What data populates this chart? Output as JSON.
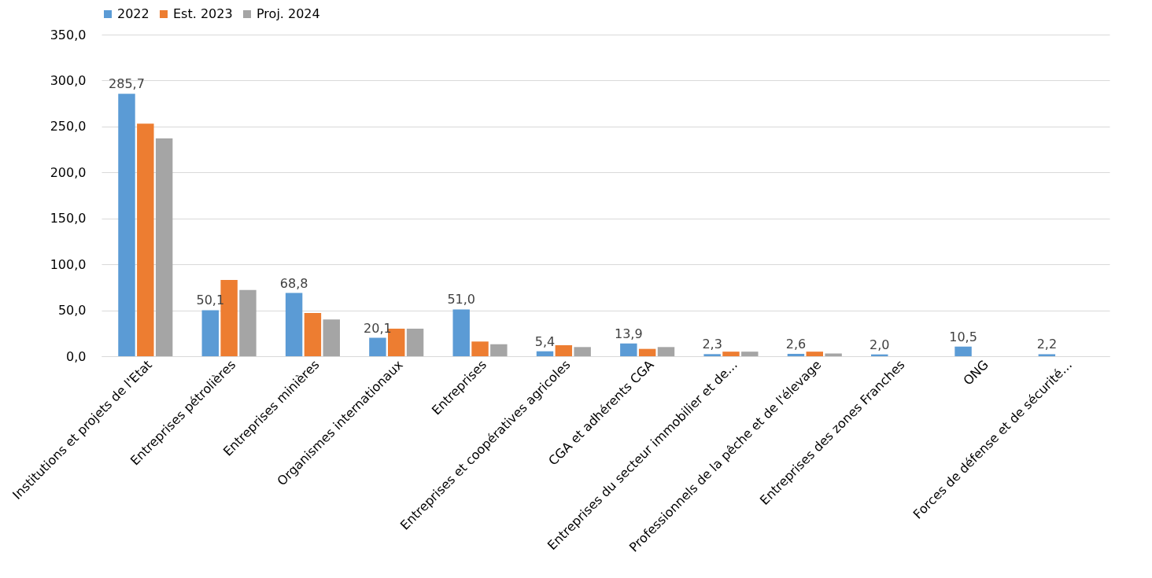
{
  "chart_data": {
    "type": "bar",
    "categories": [
      "Institutions et projets de l'Etat",
      "Entreprises pétrolières",
      "Entreprises minières",
      "Organismes internationaux",
      "Entreprises",
      "Entreprises et coopératives agricoles",
      "CGA et adhérents CGA",
      "Entreprises du secteur immobilier et de…",
      "Professionnels de la pêche et de l'élevage",
      "Entreprises des zones Franches",
      "ONG",
      "Forces de défense et de sécurité…"
    ],
    "series": [
      {
        "name": "2022",
        "color": "#5b9bd5",
        "values": [
          285.7,
          50.1,
          68.8,
          20.1,
          51.0,
          5.4,
          13.9,
          2.3,
          2.6,
          2.0,
          10.5,
          2.2
        ],
        "value_labels": [
          "285,7",
          "50,1",
          "68,8",
          "20,1",
          "51,0",
          "5,4",
          "13,9",
          "2,3",
          "2,6",
          "2,0",
          "10,5",
          "2,2"
        ]
      },
      {
        "name": "Est. 2023",
        "color": "#ed7d31",
        "values": [
          253,
          83,
          47,
          30,
          16,
          12,
          8,
          5,
          5,
          null,
          null,
          null
        ]
      },
      {
        "name": "Proj. 2024",
        "color": "#a5a5a5",
        "values": [
          237,
          72,
          40,
          30,
          13,
          10,
          10,
          5,
          3,
          null,
          null,
          null
        ]
      }
    ],
    "ylim": [
      0,
      350
    ],
    "yticks": [
      {
        "value": 0,
        "label": "0,0"
      },
      {
        "value": 50,
        "label": "50,0"
      },
      {
        "value": 100,
        "label": "100,0"
      },
      {
        "value": 150,
        "label": "150,0"
      },
      {
        "value": 200,
        "label": "200,0"
      },
      {
        "value": 250,
        "label": "250,0"
      },
      {
        "value": 300,
        "label": "300,0"
      },
      {
        "value": 350,
        "label": "350,0"
      }
    ],
    "grid": "y",
    "legend": "top"
  }
}
